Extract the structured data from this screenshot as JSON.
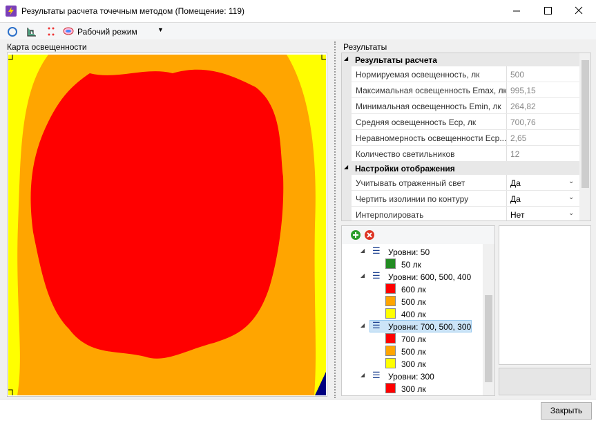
{
  "window": {
    "title": "Результаты расчета точечным методом (Помещение: 119)"
  },
  "toolbar": {
    "mode": "Рабочий режим"
  },
  "map": {
    "label": "Карта освещенности"
  },
  "results": {
    "label": "Результаты",
    "sections": [
      {
        "title": "Результаты расчета",
        "dropdown": false,
        "rows": [
          [
            "Нормируемая освещенность, лк",
            "500"
          ],
          [
            "Максимальная освещенность Emax, лк",
            "995,15"
          ],
          [
            "Минимальная освещенность Emin, лк",
            "264,82"
          ],
          [
            "Средняя освещенность Еср, лк",
            "700,76"
          ],
          [
            "Неравномерность освещенности Еср...",
            "2,65"
          ],
          [
            "Количество светильников",
            "12"
          ]
        ]
      },
      {
        "title": "Настройки отображения",
        "dropdown": true,
        "rows": [
          [
            "Учитывать отраженный свет",
            "Да"
          ],
          [
            "Чертить изолинии по контуру",
            "Да"
          ],
          [
            "Интерполировать",
            "Нет"
          ]
        ]
      }
    ]
  },
  "levels": {
    "groups": [
      {
        "label": "Уровни: 50",
        "selected": false,
        "items": [
          {
            "label": "50 лк",
            "color": "#228b22"
          }
        ]
      },
      {
        "label": "Уровни: 600, 500, 400",
        "selected": false,
        "items": [
          {
            "label": "600 лк",
            "color": "#ff0000"
          },
          {
            "label": "500 лк",
            "color": "#ffa500"
          },
          {
            "label": "400 лк",
            "color": "#ffff00"
          }
        ]
      },
      {
        "label": "Уровни: 700, 500, 300",
        "selected": true,
        "items": [
          {
            "label": "700 лк",
            "color": "#ff0000"
          },
          {
            "label": "500 лк",
            "color": "#ffa500"
          },
          {
            "label": "300 лк",
            "color": "#ffff00"
          }
        ]
      },
      {
        "label": "Уровни: 300",
        "selected": false,
        "items": [
          {
            "label": "300 лк",
            "color": "#ff0000"
          }
        ]
      }
    ]
  },
  "buttons": {
    "close": "Закрыть"
  }
}
